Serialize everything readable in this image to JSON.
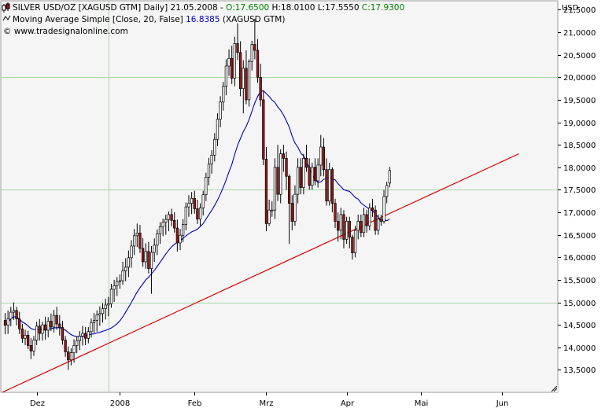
{
  "header": {
    "line1_prefix": "SILVER USD/OZ [XAGUSD GTM]  Daily] 21.05.2008 - ",
    "open_text": "O:17.6500",
    "high_low_text": " H:18.0100 L:17.5550 ",
    "close_text": "C:17.9300",
    "line2_prefix": "Moving Average Simple [Close, 20, False] ",
    "ma_value": "16.8385",
    "line2_suffix": " (XAGUSD GTM)",
    "line3": "© www.tradesignalonline.com"
  },
  "colors": {
    "background": "#ffffff",
    "plot_background": "#f5f5f5",
    "grid": "#a8d8a8",
    "ma_line": "#0000c8",
    "trendline": "#e00000",
    "candle_up_fill": "#ffffff",
    "candle_down_fill": "#a01414",
    "candle_outline": "#000000",
    "open_text": "#008000",
    "close_text": "#008000",
    "ma_value_text": "#0000c8"
  },
  "chart_data": {
    "type": "candlestick",
    "currency_label": "USD",
    "ylim": [
      13.0,
      21.7
    ],
    "y_ticks": [
      13.5,
      14.0,
      14.5,
      15.0,
      15.5,
      16.0,
      16.5,
      17.0,
      17.5,
      18.0,
      18.5,
      19.0,
      19.5,
      20.0,
      20.5,
      21.0,
      21.5
    ],
    "y_tick_labels": [
      "13,5000",
      "14,0000",
      "14,5000",
      "15,0000",
      "15,5000",
      "16,0000",
      "16,5000",
      "17,0000",
      "17,5000",
      "18,0000",
      "18,5000",
      "19,0000",
      "19,5000",
      "20,0000",
      "20,5000",
      "21,0000",
      "21,5000"
    ],
    "y_gridlines": [
      15.0,
      17.5,
      20.0
    ],
    "x_labels": [
      {
        "label": "Dez",
        "bar_index": 11
      },
      {
        "label": "2008",
        "bar_index": 40
      },
      {
        "label": "Feb",
        "bar_index": 66
      },
      {
        "label": "Mrz",
        "bar_index": 91
      },
      {
        "label": "Apr",
        "bar_index": 119
      },
      {
        "label": "Mai",
        "bar_index": 145
      },
      {
        "label": "Jun",
        "bar_index": 173
      }
    ],
    "x_gridline_bar_index": 36,
    "trendline": {
      "start_bar": -1,
      "start_price": 13.0,
      "end_bar": 179,
      "end_price": 18.3
    },
    "candles": [
      {
        "o": 14.6,
        "h": 14.76,
        "l": 14.29,
        "c": 14.49
      },
      {
        "o": 14.49,
        "h": 14.82,
        "l": 14.3,
        "c": 14.63
      },
      {
        "o": 14.63,
        "h": 14.9,
        "l": 14.47,
        "c": 14.78
      },
      {
        "o": 14.78,
        "h": 15.0,
        "l": 14.61,
        "c": 14.82
      },
      {
        "o": 14.82,
        "h": 14.9,
        "l": 14.49,
        "c": 14.63
      },
      {
        "o": 14.63,
        "h": 14.79,
        "l": 14.3,
        "c": 14.41
      },
      {
        "o": 14.41,
        "h": 14.52,
        "l": 14.1,
        "c": 14.2
      },
      {
        "o": 14.2,
        "h": 14.39,
        "l": 14.05,
        "c": 14.27
      },
      {
        "o": 14.27,
        "h": 14.37,
        "l": 13.96,
        "c": 14.04
      },
      {
        "o": 14.04,
        "h": 14.2,
        "l": 13.74,
        "c": 13.92
      },
      {
        "o": 13.92,
        "h": 14.25,
        "l": 13.81,
        "c": 14.16
      },
      {
        "o": 14.16,
        "h": 14.57,
        "l": 14.05,
        "c": 14.47
      },
      {
        "o": 14.47,
        "h": 14.63,
        "l": 14.15,
        "c": 14.31
      },
      {
        "o": 14.31,
        "h": 14.57,
        "l": 14.15,
        "c": 14.5
      },
      {
        "o": 14.5,
        "h": 14.68,
        "l": 14.17,
        "c": 14.38
      },
      {
        "o": 14.38,
        "h": 14.67,
        "l": 14.22,
        "c": 14.58
      },
      {
        "o": 14.58,
        "h": 14.75,
        "l": 14.36,
        "c": 14.45
      },
      {
        "o": 14.45,
        "h": 14.83,
        "l": 14.33,
        "c": 14.71
      },
      {
        "o": 14.71,
        "h": 14.9,
        "l": 14.39,
        "c": 14.52
      },
      {
        "o": 14.52,
        "h": 14.72,
        "l": 14.26,
        "c": 14.44
      },
      {
        "o": 14.44,
        "h": 14.59,
        "l": 14.06,
        "c": 14.16
      },
      {
        "o": 14.16,
        "h": 14.25,
        "l": 13.79,
        "c": 13.9
      },
      {
        "o": 13.9,
        "h": 14.02,
        "l": 13.5,
        "c": 13.72
      },
      {
        "o": 13.72,
        "h": 13.98,
        "l": 13.6,
        "c": 13.88
      },
      {
        "o": 13.88,
        "h": 14.18,
        "l": 13.66,
        "c": 14.04
      },
      {
        "o": 14.04,
        "h": 14.25,
        "l": 13.87,
        "c": 14.15
      },
      {
        "o": 14.15,
        "h": 14.36,
        "l": 13.94,
        "c": 14.25
      },
      {
        "o": 14.25,
        "h": 14.48,
        "l": 14.04,
        "c": 14.31
      },
      {
        "o": 14.31,
        "h": 14.45,
        "l": 14.05,
        "c": 14.2
      },
      {
        "o": 14.2,
        "h": 14.45,
        "l": 14.09,
        "c": 14.35
      },
      {
        "o": 14.35,
        "h": 14.64,
        "l": 14.22,
        "c": 14.55
      },
      {
        "o": 14.55,
        "h": 14.76,
        "l": 14.32,
        "c": 14.6
      },
      {
        "o": 14.6,
        "h": 14.82,
        "l": 14.35,
        "c": 14.72
      },
      {
        "o": 14.72,
        "h": 14.91,
        "l": 14.48,
        "c": 14.75
      },
      {
        "o": 14.75,
        "h": 14.98,
        "l": 14.55,
        "c": 14.86
      },
      {
        "o": 14.86,
        "h": 15.08,
        "l": 14.62,
        "c": 14.94
      },
      {
        "o": 14.94,
        "h": 15.12,
        "l": 14.69,
        "c": 14.97
      },
      {
        "o": 14.97,
        "h": 15.41,
        "l": 14.88,
        "c": 15.29
      },
      {
        "o": 15.29,
        "h": 15.5,
        "l": 15.01,
        "c": 15.37
      },
      {
        "o": 15.37,
        "h": 15.56,
        "l": 15.14,
        "c": 15.46
      },
      {
        "o": 15.46,
        "h": 15.62,
        "l": 15.3,
        "c": 15.48
      },
      {
        "o": 15.48,
        "h": 15.9,
        "l": 15.39,
        "c": 15.7
      },
      {
        "o": 15.7,
        "h": 15.98,
        "l": 15.47,
        "c": 15.78
      },
      {
        "o": 15.78,
        "h": 16.15,
        "l": 15.56,
        "c": 15.99
      },
      {
        "o": 15.99,
        "h": 16.38,
        "l": 15.77,
        "c": 16.25
      },
      {
        "o": 16.25,
        "h": 16.63,
        "l": 16.05,
        "c": 16.48
      },
      {
        "o": 16.48,
        "h": 16.75,
        "l": 16.23,
        "c": 16.54
      },
      {
        "o": 16.54,
        "h": 16.72,
        "l": 16.1,
        "c": 16.2
      },
      {
        "o": 16.2,
        "h": 16.43,
        "l": 15.79,
        "c": 15.9
      },
      {
        "o": 15.9,
        "h": 16.31,
        "l": 15.75,
        "c": 16.13
      },
      {
        "o": 16.13,
        "h": 16.34,
        "l": 15.64,
        "c": 15.75
      },
      {
        "o": 15.75,
        "h": 16.25,
        "l": 15.19,
        "c": 16.11
      },
      {
        "o": 16.11,
        "h": 16.42,
        "l": 15.9,
        "c": 16.27
      },
      {
        "o": 16.27,
        "h": 16.62,
        "l": 16.05,
        "c": 16.52
      },
      {
        "o": 16.52,
        "h": 16.78,
        "l": 16.3,
        "c": 16.68
      },
      {
        "o": 16.68,
        "h": 16.86,
        "l": 16.47,
        "c": 16.78
      },
      {
        "o": 16.78,
        "h": 16.95,
        "l": 16.5,
        "c": 16.84
      },
      {
        "o": 16.84,
        "h": 17.02,
        "l": 16.58,
        "c": 16.95
      },
      {
        "o": 16.95,
        "h": 17.08,
        "l": 16.69,
        "c": 16.82
      },
      {
        "o": 16.82,
        "h": 17.0,
        "l": 16.55,
        "c": 16.65
      },
      {
        "o": 16.65,
        "h": 16.84,
        "l": 16.13,
        "c": 16.32
      },
      {
        "o": 16.32,
        "h": 16.63,
        "l": 16.16,
        "c": 16.49
      },
      {
        "o": 16.49,
        "h": 16.85,
        "l": 16.34,
        "c": 16.73
      },
      {
        "o": 16.73,
        "h": 17.22,
        "l": 16.6,
        "c": 17.12
      },
      {
        "o": 17.12,
        "h": 17.38,
        "l": 16.9,
        "c": 17.2
      },
      {
        "o": 17.2,
        "h": 17.45,
        "l": 16.96,
        "c": 17.31
      },
      {
        "o": 17.31,
        "h": 17.48,
        "l": 16.97,
        "c": 17.08
      },
      {
        "o": 17.08,
        "h": 17.28,
        "l": 16.74,
        "c": 16.85
      },
      {
        "o": 16.85,
        "h": 17.2,
        "l": 16.7,
        "c": 17.1
      },
      {
        "o": 17.1,
        "h": 17.48,
        "l": 16.93,
        "c": 17.39
      },
      {
        "o": 17.39,
        "h": 17.88,
        "l": 17.25,
        "c": 17.78
      },
      {
        "o": 17.78,
        "h": 18.21,
        "l": 17.6,
        "c": 18.07
      },
      {
        "o": 18.07,
        "h": 18.38,
        "l": 17.86,
        "c": 18.27
      },
      {
        "o": 18.27,
        "h": 18.76,
        "l": 18.13,
        "c": 18.62
      },
      {
        "o": 18.62,
        "h": 19.2,
        "l": 18.47,
        "c": 19.07
      },
      {
        "o": 19.07,
        "h": 19.58,
        "l": 18.89,
        "c": 19.45
      },
      {
        "o": 19.45,
        "h": 19.9,
        "l": 19.26,
        "c": 19.8
      },
      {
        "o": 19.8,
        "h": 20.4,
        "l": 19.6,
        "c": 20.25
      },
      {
        "o": 20.25,
        "h": 20.62,
        "l": 20.03,
        "c": 20.42
      },
      {
        "o": 20.42,
        "h": 20.7,
        "l": 19.85,
        "c": 19.98
      },
      {
        "o": 19.98,
        "h": 20.9,
        "l": 19.8,
        "c": 20.75
      },
      {
        "o": 20.75,
        "h": 21.2,
        "l": 20.38,
        "c": 20.55
      },
      {
        "o": 20.55,
        "h": 20.8,
        "l": 19.58,
        "c": 19.75
      },
      {
        "o": 19.75,
        "h": 20.38,
        "l": 19.2,
        "c": 20.2
      },
      {
        "o": 20.2,
        "h": 20.6,
        "l": 19.4,
        "c": 19.5
      },
      {
        "o": 19.5,
        "h": 20.4,
        "l": 19.35,
        "c": 20.35
      },
      {
        "o": 20.35,
        "h": 20.81,
        "l": 20.15,
        "c": 20.73
      },
      {
        "o": 20.73,
        "h": 21.3,
        "l": 20.4,
        "c": 20.6
      },
      {
        "o": 20.6,
        "h": 20.85,
        "l": 19.88,
        "c": 20.0
      },
      {
        "o": 20.0,
        "h": 20.3,
        "l": 19.35,
        "c": 19.5
      },
      {
        "o": 19.5,
        "h": 19.7,
        "l": 18.05,
        "c": 18.18
      },
      {
        "o": 18.18,
        "h": 18.45,
        "l": 16.58,
        "c": 16.75
      },
      {
        "o": 16.75,
        "h": 17.28,
        "l": 16.7,
        "c": 17.05
      },
      {
        "o": 17.05,
        "h": 17.25,
        "l": 16.9,
        "c": 17.05
      },
      {
        "o": 17.05,
        "h": 18.2,
        "l": 16.85,
        "c": 18.0
      },
      {
        "o": 18.0,
        "h": 18.5,
        "l": 17.25,
        "c": 17.4
      },
      {
        "o": 17.4,
        "h": 18.4,
        "l": 17.2,
        "c": 18.3
      },
      {
        "o": 18.3,
        "h": 18.5,
        "l": 17.9,
        "c": 18.2
      },
      {
        "o": 18.2,
        "h": 18.35,
        "l": 17.5,
        "c": 17.8
      },
      {
        "o": 17.8,
        "h": 17.85,
        "l": 16.3,
        "c": 17.2
      },
      {
        "o": 17.2,
        "h": 17.38,
        "l": 16.6,
        "c": 16.8
      },
      {
        "o": 16.8,
        "h": 17.6,
        "l": 16.7,
        "c": 17.4
      },
      {
        "o": 17.4,
        "h": 18.2,
        "l": 17.2,
        "c": 18.0
      },
      {
        "o": 18.0,
        "h": 18.2,
        "l": 17.4,
        "c": 17.55
      },
      {
        "o": 17.55,
        "h": 18.3,
        "l": 17.4,
        "c": 18.2
      },
      {
        "o": 18.2,
        "h": 18.5,
        "l": 17.9,
        "c": 18.0
      },
      {
        "o": 18.0,
        "h": 18.2,
        "l": 17.5,
        "c": 17.6
      },
      {
        "o": 17.6,
        "h": 18.1,
        "l": 17.5,
        "c": 18.0
      },
      {
        "o": 18.0,
        "h": 18.2,
        "l": 17.6,
        "c": 17.7
      },
      {
        "o": 17.7,
        "h": 18.2,
        "l": 17.55,
        "c": 18.05
      },
      {
        "o": 18.05,
        "h": 18.72,
        "l": 17.8,
        "c": 18.45
      },
      {
        "o": 18.45,
        "h": 18.65,
        "l": 17.8,
        "c": 17.95
      },
      {
        "o": 17.95,
        "h": 18.2,
        "l": 17.15,
        "c": 17.25
      },
      {
        "o": 17.25,
        "h": 18.1,
        "l": 17.15,
        "c": 17.95
      },
      {
        "o": 17.95,
        "h": 18.0,
        "l": 17.0,
        "c": 17.2
      },
      {
        "o": 17.2,
        "h": 17.3,
        "l": 16.65,
        "c": 16.8
      },
      {
        "o": 16.8,
        "h": 17.0,
        "l": 16.35,
        "c": 16.6
      },
      {
        "o": 16.6,
        "h": 17.1,
        "l": 16.4,
        "c": 16.95
      },
      {
        "o": 16.95,
        "h": 17.05,
        "l": 16.2,
        "c": 16.4
      },
      {
        "o": 16.4,
        "h": 16.9,
        "l": 16.3,
        "c": 16.8
      },
      {
        "o": 16.8,
        "h": 16.9,
        "l": 16.2,
        "c": 16.45
      },
      {
        "o": 16.45,
        "h": 16.5,
        "l": 15.95,
        "c": 16.1
      },
      {
        "o": 16.1,
        "h": 16.7,
        "l": 16.0,
        "c": 16.6
      },
      {
        "o": 16.6,
        "h": 16.95,
        "l": 16.4,
        "c": 16.8
      },
      {
        "o": 16.8,
        "h": 16.95,
        "l": 16.45,
        "c": 16.55
      },
      {
        "o": 16.55,
        "h": 17.1,
        "l": 16.45,
        "c": 16.95
      },
      {
        "o": 16.95,
        "h": 17.05,
        "l": 16.55,
        "c": 16.7
      },
      {
        "o": 16.7,
        "h": 17.2,
        "l": 16.6,
        "c": 17.1
      },
      {
        "o": 17.1,
        "h": 17.3,
        "l": 16.9,
        "c": 17.05
      },
      {
        "o": 17.05,
        "h": 17.15,
        "l": 16.5,
        "c": 16.6
      },
      {
        "o": 16.6,
        "h": 16.95,
        "l": 16.5,
        "c": 16.85
      },
      {
        "o": 16.85,
        "h": 16.95,
        "l": 16.7,
        "c": 16.8
      },
      {
        "o": 16.8,
        "h": 17.5,
        "l": 16.75,
        "c": 17.35
      },
      {
        "o": 17.35,
        "h": 17.68,
        "l": 17.2,
        "c": 17.6
      },
      {
        "o": 17.65,
        "h": 18.01,
        "l": 17.555,
        "c": 17.93
      }
    ]
  }
}
